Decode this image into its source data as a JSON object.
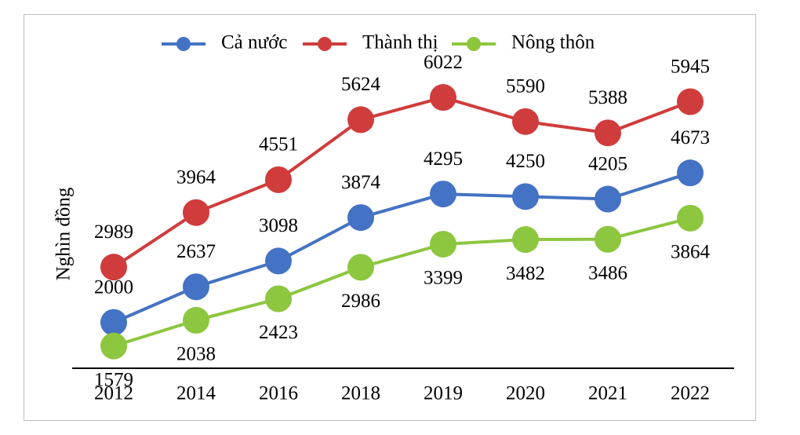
{
  "chart_data": {
    "type": "line",
    "ylabel": "Nghìn đồng",
    "xlabel": "",
    "categories": [
      "2012",
      "2014",
      "2016",
      "2018",
      "2019",
      "2020",
      "2021",
      "2022"
    ],
    "ylim": [
      1000,
      7000
    ],
    "grid": false,
    "legend_position": "top",
    "series": [
      {
        "name": "Cả nước",
        "color": "#4472c4",
        "values": [
          2000,
          2637,
          3098,
          3874,
          4295,
          4250,
          4205,
          4673
        ]
      },
      {
        "name": "Thành thị",
        "color": "#d03c3c",
        "values": [
          2989,
          3964,
          4551,
          5624,
          6022,
          5590,
          5388,
          5945
        ]
      },
      {
        "name": "Nông thôn",
        "color": "#8dc63f",
        "values": [
          1579,
          2038,
          2423,
          2986,
          3399,
          3482,
          3486,
          3864
        ]
      }
    ]
  }
}
